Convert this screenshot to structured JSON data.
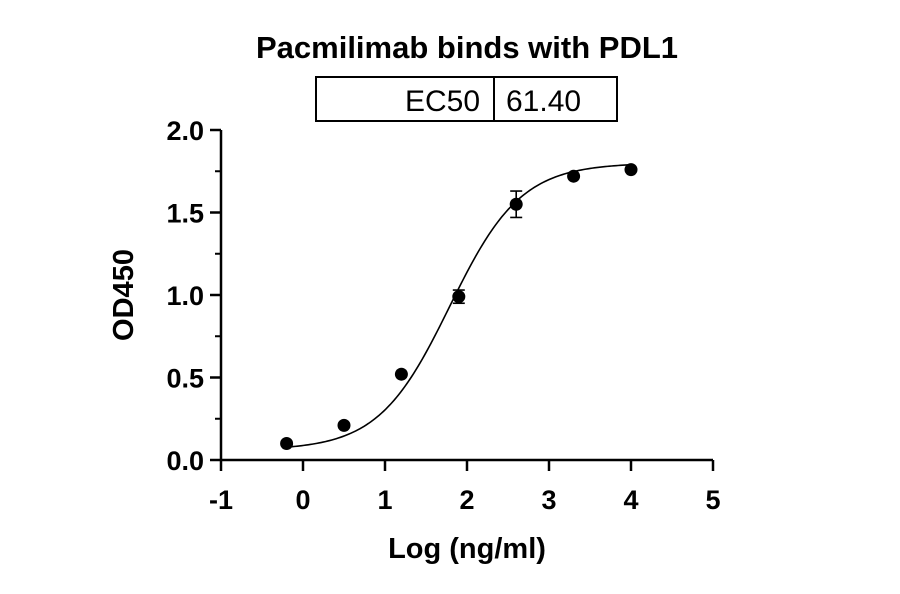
{
  "chart_data": {
    "type": "scatter",
    "title": "Pacmilimab binds with PDL1",
    "xlabel": "Log (ng/ml)",
    "ylabel": "OD450",
    "xlim": [
      -1,
      5
    ],
    "ylim": [
      0,
      2
    ],
    "x_ticks": [
      "-1",
      "0",
      "1",
      "2",
      "3",
      "4",
      "5"
    ],
    "y_ticks": [
      "0.0",
      "0.5",
      "1.0",
      "1.5",
      "2.0"
    ],
    "points": [
      {
        "x": -0.2,
        "y": 0.1,
        "err": 0
      },
      {
        "x": 0.5,
        "y": 0.21,
        "err": 0
      },
      {
        "x": 1.2,
        "y": 0.52,
        "err": 0
      },
      {
        "x": 1.9,
        "y": 0.99,
        "err": 0.04
      },
      {
        "x": 2.6,
        "y": 1.55,
        "err": 0.08
      },
      {
        "x": 3.3,
        "y": 1.72,
        "err": 0
      },
      {
        "x": 4.0,
        "y": 1.76,
        "err": 0
      }
    ],
    "fit": {
      "bottom": 0.06,
      "top": 1.8,
      "logEC50": 1.788,
      "hill": 1.0
    },
    "table": {
      "label": "EC50",
      "value": "61.40"
    },
    "colors": {
      "ink": "#000000"
    }
  }
}
